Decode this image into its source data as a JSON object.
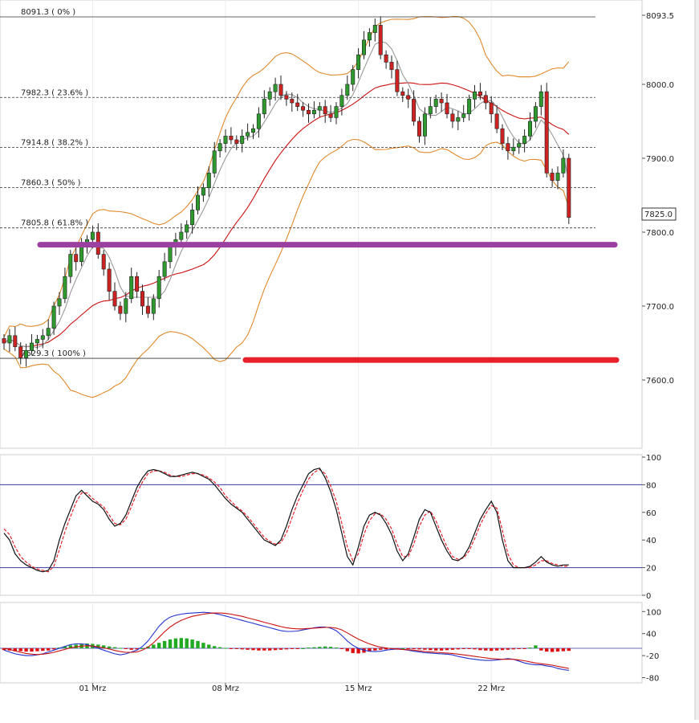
{
  "chart_data": [
    {
      "type": "candlestick",
      "panel": "price",
      "y_axis_ticks": [
        "8093.5",
        "8000.0",
        "7900.0",
        "7800.0",
        "7700.0",
        "7600.0"
      ],
      "y_axis_tick_values": [
        8093.5,
        8000,
        7900,
        7800,
        7700,
        7600
      ],
      "ylim": [
        7535,
        8110
      ],
      "current_price_label": "7825.0",
      "current_price": 7825,
      "fib_levels": [
        {
          "label": "8091.3 ( 0% )",
          "value": 8091.3
        },
        {
          "label": "7982.3 ( 23.6% )",
          "value": 7982.3
        },
        {
          "label": "7914.8 ( 38.2% )",
          "value": 7914.8
        },
        {
          "label": "7860.3 ( 50% )",
          "value": 7860.3
        },
        {
          "label": "7805.8 ( 61.8% )",
          "value": 7805.8
        },
        {
          "label": "7629.3 ( 100% )",
          "value": 7629.3
        }
      ],
      "horizontal_lines": [
        {
          "value": 7783,
          "color": "#9b3fa0"
        },
        {
          "value": 7627,
          "color": "#e8202a"
        }
      ],
      "x_axis_labels": [
        "01 Mrz",
        "08 Mrz",
        "15 Mrz",
        "22 Mrz"
      ],
      "x_axis_label_bars": [
        16,
        40,
        64,
        88
      ],
      "candle_count": 103,
      "close": [
        7650,
        7660,
        7645,
        7630,
        7640,
        7650,
        7655,
        7660,
        7670,
        7700,
        7710,
        7740,
        7770,
        7760,
        7780,
        7790,
        7800,
        7770,
        7750,
        7720,
        7700,
        7690,
        7710,
        7740,
        7720,
        7700,
        7690,
        7710,
        7740,
        7760,
        7780,
        7790,
        7800,
        7810,
        7830,
        7850,
        7860,
        7880,
        7910,
        7920,
        7930,
        7925,
        7920,
        7930,
        7935,
        7940,
        7960,
        7980,
        7990,
        8000,
        7985,
        7980,
        7975,
        7970,
        7965,
        7960,
        7965,
        7970,
        7960,
        7955,
        7970,
        7985,
        8000,
        8020,
        8040,
        8060,
        8070,
        8080,
        8040,
        8030,
        8020,
        7990,
        7985,
        7980,
        7950,
        7930,
        7960,
        7970,
        7980,
        7975,
        7960,
        7950,
        7955,
        7960,
        7980,
        7990,
        7985,
        7975,
        7960,
        7940,
        7920,
        7910,
        7915,
        7920,
        7930,
        7950,
        7970,
        7990,
        7880,
        7870,
        7880,
        7900,
        7820
      ],
      "colors": {
        "bull": "#2e9a2e",
        "bear": "#cc2222",
        "ma_fast": "#999999",
        "ma_slow": "#cc1111",
        "bollinger": "#e08a2c"
      }
    },
    {
      "type": "line",
      "panel": "stochastic",
      "y_axis_ticks": [
        "100",
        "80",
        "60",
        "40",
        "20",
        "0"
      ],
      "y_axis_tick_values": [
        100,
        80,
        60,
        40,
        20,
        0
      ],
      "reference_lines": [
        80,
        20
      ],
      "series": [
        {
          "values": [
            45,
            40,
            30,
            25,
            22,
            20,
            18,
            17,
            18,
            25,
            40,
            52,
            62,
            72,
            76,
            72,
            68,
            66,
            62,
            55,
            50,
            52,
            58,
            68,
            78,
            85,
            90,
            91,
            90,
            88,
            86,
            86,
            87,
            88,
            89,
            88,
            86,
            84,
            80,
            75,
            70,
            66,
            63,
            60,
            55,
            50,
            45,
            40,
            38,
            36,
            40,
            50,
            62,
            72,
            80,
            88,
            91,
            92,
            85,
            75,
            62,
            45,
            28,
            22,
            35,
            50,
            58,
            60,
            58,
            52,
            44,
            32,
            25,
            30,
            42,
            55,
            62,
            60,
            50,
            40,
            32,
            26,
            25,
            28,
            35,
            45,
            55,
            62,
            68,
            60,
            40,
            25,
            20,
            20,
            20,
            21,
            24,
            28,
            24,
            22,
            21,
            22,
            22
          ]
        },
        {
          "values": [
            48,
            44,
            35,
            28,
            24,
            21,
            19,
            18,
            17,
            21,
            33,
            46,
            57,
            67,
            74,
            74,
            70,
            67,
            64,
            58,
            52,
            51,
            55,
            64,
            74,
            82,
            88,
            90,
            90,
            89,
            87,
            86,
            86,
            87,
            88,
            88,
            87,
            85,
            82,
            78,
            72,
            68,
            64,
            61,
            57,
            52,
            47,
            42,
            39,
            37,
            38,
            45,
            56,
            67,
            76,
            84,
            89,
            91,
            88,
            79,
            68,
            52,
            35,
            25,
            30,
            44,
            54,
            59,
            59,
            55,
            48,
            37,
            28,
            28,
            37,
            50,
            58,
            61,
            54,
            44,
            35,
            28,
            26,
            27,
            32,
            41,
            51,
            59,
            65,
            63,
            47,
            30,
            22,
            20,
            20,
            20,
            22,
            25,
            25,
            23,
            22,
            21,
            21
          ]
        }
      ]
    },
    {
      "type": "bar",
      "panel": "macd",
      "y_axis_ticks": [
        "100",
        "40",
        "-20",
        "-80"
      ],
      "y_axis_tick_values": [
        100,
        40,
        -20,
        -80
      ],
      "histogram": [
        -5,
        -6,
        -8,
        -8,
        -9,
        -9,
        -8,
        -7,
        -6,
        -3,
        2,
        5,
        8,
        10,
        12,
        13,
        12,
        10,
        8,
        5,
        3,
        1,
        -2,
        -4,
        -3,
        0,
        5,
        10,
        15,
        20,
        24,
        27,
        28,
        27,
        24,
        20,
        15,
        10,
        6,
        3,
        1,
        -1,
        -2,
        -3,
        -4,
        -5,
        -6,
        -6,
        -6,
        -5,
        -4,
        -3,
        -2,
        -1,
        0,
        2,
        3,
        4,
        5,
        4,
        2,
        -2,
        -8,
        -13,
        -14,
        -12,
        -9,
        -6,
        -4,
        -3,
        -2,
        -1,
        0,
        -1,
        -2,
        -3,
        -4,
        -5,
        -6,
        -6,
        -5,
        -4,
        -3,
        -2,
        -1,
        -3,
        -5,
        -6,
        -7,
        -6,
        -5,
        -4,
        -3,
        -2,
        -1,
        2,
        8,
        -6,
        -9,
        -10,
        -9,
        -8,
        -7
      ],
      "series": [
        {
          "values": [
            -5,
            -10,
            -15,
            -18,
            -20,
            -20,
            -18,
            -15,
            -10,
            -5,
            0,
            5,
            10,
            12,
            12,
            10,
            5,
            0,
            -5,
            -10,
            -15,
            -18,
            -15,
            -10,
            -5,
            5,
            20,
            40,
            60,
            75,
            85,
            90,
            93,
            95,
            96,
            97,
            98,
            97,
            95,
            92,
            88,
            84,
            80,
            76,
            72,
            68,
            64,
            60,
            56,
            52,
            48,
            46,
            46,
            47,
            50,
            53,
            56,
            58,
            58,
            55,
            48,
            35,
            20,
            8,
            0,
            -5,
            -8,
            -9,
            -8,
            -5,
            -3,
            -2,
            -3,
            -5,
            -8,
            -10,
            -12,
            -13,
            -14,
            -15,
            -16,
            -18,
            -22,
            -25,
            -28,
            -30,
            -32,
            -33,
            -33,
            -32,
            -30,
            -28,
            -30,
            -35,
            -40,
            -43,
            -45,
            -45,
            -48,
            -50,
            -55,
            -58,
            -60
          ]
        },
        {
          "values": [
            0,
            -3,
            -7,
            -11,
            -14,
            -16,
            -17,
            -16,
            -14,
            -11,
            -7,
            -3,
            1,
            4,
            6,
            7,
            6,
            4,
            1,
            -2,
            -6,
            -9,
            -11,
            -11,
            -10,
            -5,
            3,
            15,
            30,
            45,
            58,
            68,
            76,
            82,
            87,
            90,
            93,
            95,
            96,
            96,
            95,
            93,
            90,
            87,
            83,
            79,
            75,
            71,
            67,
            63,
            59,
            56,
            54,
            53,
            53,
            54,
            55,
            56,
            57,
            57,
            55,
            50,
            42,
            33,
            25,
            18,
            12,
            7,
            3,
            1,
            -1,
            -2,
            -3,
            -4,
            -5,
            -7,
            -9,
            -10,
            -11,
            -12,
            -13,
            -14,
            -16,
            -18,
            -20,
            -22,
            -24,
            -26,
            -28,
            -29,
            -30,
            -30,
            -30,
            -32,
            -34,
            -37,
            -40,
            -42,
            -44,
            -46,
            -49,
            -52,
            -55
          ]
        }
      ]
    }
  ]
}
